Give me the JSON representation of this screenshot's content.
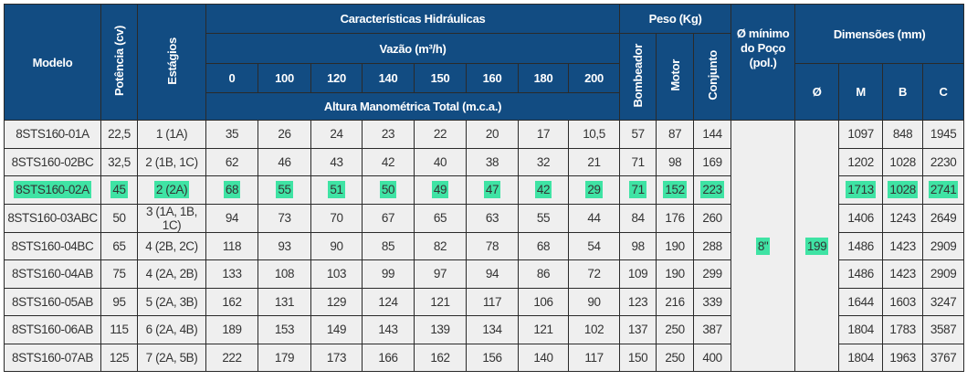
{
  "header": {
    "modelo": "Modelo",
    "potencia": "Potência (cv)",
    "estagios": "Estágios",
    "caracteristicas": "Características Hidráulicas",
    "vazao": "Vazão (m³/h)",
    "flows": [
      "0",
      "100",
      "120",
      "140",
      "150",
      "160",
      "180",
      "200"
    ],
    "altura": "Altura Manométrica Total (m.c.a.)",
    "peso": "Peso (Kg)",
    "bombeador": "Bombeador",
    "motor": "Motor",
    "conjunto": "Conjunto",
    "diam_min": "Ø mínimo do Poço (pol.)",
    "dimensoes": "Dimensões (mm)",
    "dim_o": "Ø",
    "dim_m": "M",
    "dim_b": "B",
    "dim_c": "C"
  },
  "merged": {
    "diam_min": "8\"",
    "diam": "199"
  },
  "highlight_color": "#3fe3a4",
  "highlight_row": 2,
  "rows": [
    [
      "8STS160-01A",
      "22,5",
      "1 (1A)",
      "35",
      "26",
      "24",
      "23",
      "22",
      "20",
      "17",
      "10,5",
      "57",
      "87",
      "144",
      "1097",
      "848",
      "1945"
    ],
    [
      "8STS160-02BC",
      "32,5",
      "2 (1B, 1C)",
      "62",
      "46",
      "43",
      "42",
      "40",
      "38",
      "32",
      "21",
      "71",
      "98",
      "169",
      "1202",
      "1028",
      "2230"
    ],
    [
      "8STS160-02A",
      "45",
      "2 (2A)",
      "68",
      "55",
      "51",
      "50",
      "49",
      "47",
      "42",
      "29",
      "71",
      "152",
      "223",
      "1713",
      "1028",
      "2741"
    ],
    [
      "8STS160-03ABC",
      "50",
      "3 (1A, 1B, 1C)",
      "94",
      "73",
      "70",
      "67",
      "65",
      "63",
      "55",
      "44",
      "84",
      "176",
      "260",
      "1406",
      "1243",
      "2649"
    ],
    [
      "8STS160-04BC",
      "65",
      "4 (2B, 2C)",
      "118",
      "93",
      "90",
      "85",
      "82",
      "78",
      "68",
      "54",
      "98",
      "190",
      "288",
      "1486",
      "1423",
      "2909"
    ],
    [
      "8STS160-04AB",
      "75",
      "4 (2A, 2B)",
      "133",
      "108",
      "103",
      "99",
      "97",
      "94",
      "86",
      "72",
      "109",
      "190",
      "299",
      "1486",
      "1423",
      "2909"
    ],
    [
      "8STS160-05AB",
      "95",
      "5 (2A, 3B)",
      "162",
      "131",
      "129",
      "124",
      "121",
      "117",
      "106",
      "90",
      "123",
      "216",
      "339",
      "1644",
      "1603",
      "3247"
    ],
    [
      "8STS160-06AB",
      "115",
      "6 (2A, 4B)",
      "189",
      "153",
      "149",
      "143",
      "139",
      "134",
      "121",
      "102",
      "137",
      "250",
      "387",
      "1804",
      "1783",
      "3587"
    ],
    [
      "8STS160-07AB",
      "125",
      "7 (2A, 5B)",
      "222",
      "179",
      "173",
      "166",
      "162",
      "156",
      "140",
      "117",
      "150",
      "250",
      "400",
      "1804",
      "1963",
      "3767"
    ]
  ]
}
